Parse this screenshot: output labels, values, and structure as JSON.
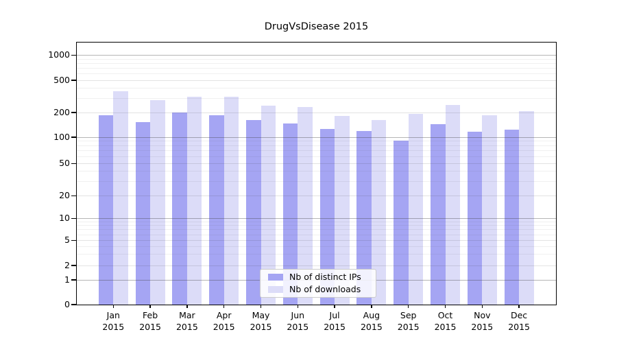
{
  "chart_data": {
    "type": "bar",
    "title": "DrugVsDisease 2015",
    "categories": [
      "Jan 2015",
      "Feb 2015",
      "Mar 2015",
      "Apr 2015",
      "May 2015",
      "Jun 2015",
      "Jul 2015",
      "Aug 2015",
      "Sep 2015",
      "Oct 2015",
      "Nov 2015",
      "Dec 2015"
    ],
    "series": [
      {
        "name": "Nb of distinct IPs",
        "color": "#a5a5f3",
        "values": [
          185,
          150,
          200,
          185,
          160,
          145,
          125,
          117,
          91,
          143,
          116,
          123
        ]
      },
      {
        "name": "Nb of downloads",
        "color": "#dcdcf8",
        "values": [
          360,
          280,
          310,
          310,
          240,
          230,
          180,
          160,
          190,
          245,
          185,
          205
        ]
      }
    ],
    "xlabel": "",
    "ylabel": "",
    "yscale": "symlog",
    "yticks": [
      0,
      1,
      2,
      5,
      10,
      20,
      50,
      100,
      200,
      500,
      1000
    ],
    "ylim": [
      0,
      1400
    ],
    "grid": true,
    "legend_position": "lower center"
  },
  "axis": {
    "spine_color": "#000000",
    "grid_major_color": "#bcbcbc",
    "grid_minor_color": "#ebebeb"
  }
}
